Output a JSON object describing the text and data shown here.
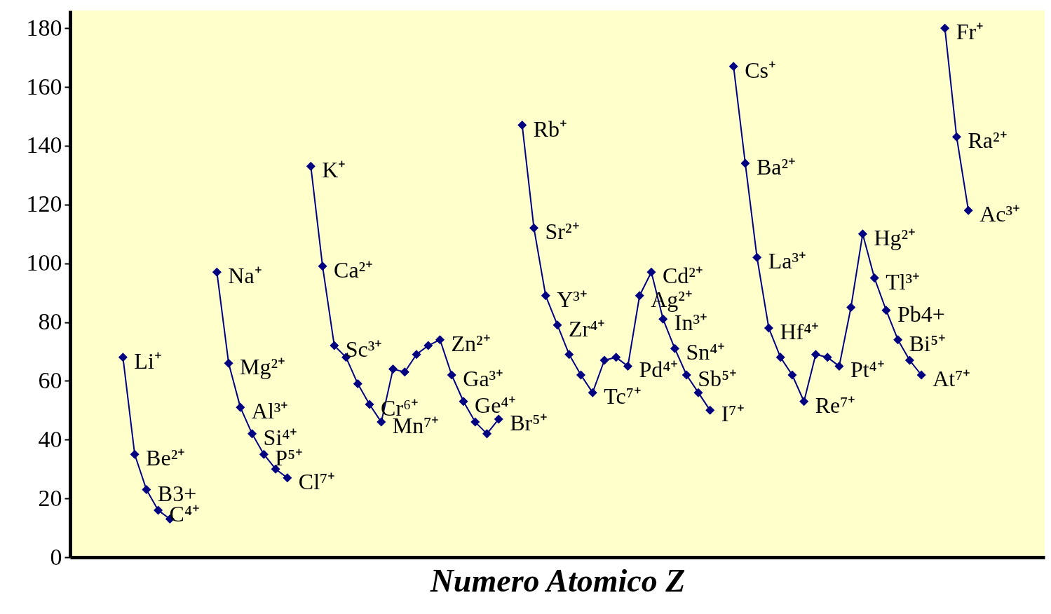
{
  "chart_data": {
    "type": "line",
    "xlabel": "Numero Atomico Z",
    "marker": "diamond",
    "ylim": [
      0,
      186
    ],
    "yticks": [
      0,
      20,
      40,
      60,
      80,
      100,
      120,
      140,
      160,
      180
    ],
    "categories": [
      null,
      null,
      null,
      null,
      null,
      null,
      null,
      null,
      null,
      null,
      null,
      null,
      null,
      null,
      null,
      null,
      null,
      null,
      null,
      null,
      null,
      null,
      null,
      null,
      null,
      null,
      null,
      null,
      null,
      null,
      null,
      null,
      null,
      null,
      null,
      null,
      null,
      null,
      null,
      null,
      null,
      null,
      null,
      null,
      null,
      null,
      null,
      null,
      null,
      null,
      null,
      null,
      null,
      null,
      null,
      null,
      null,
      null,
      null,
      null,
      null,
      null,
      null,
      null,
      null,
      null,
      null,
      null,
      null,
      null,
      null,
      null,
      null,
      null,
      null,
      null,
      null,
      null,
      null,
      null,
      null,
      null,
      null
    ],
    "series": [
      {
        "color": "#000080",
        "values": [
          null,
          null,
          null,
          null,
          68,
          35,
          23,
          16,
          13,
          null,
          null,
          null,
          97,
          66,
          51,
          42,
          35,
          30,
          27,
          null,
          133,
          99,
          72,
          68,
          59,
          52,
          46,
          64,
          63,
          69,
          72,
          74,
          62,
          53,
          46,
          42,
          47,
          null,
          147,
          112,
          89,
          79,
          69,
          62,
          56,
          67,
          68,
          65,
          89,
          97,
          81,
          71,
          62,
          56,
          50,
          null,
          167,
          134,
          102,
          78,
          68,
          62,
          53,
          69,
          68,
          65,
          85,
          110,
          95,
          84,
          74,
          67,
          62,
          null,
          180,
          143,
          118,
          null,
          null,
          null,
          null,
          null,
          null
        ],
        "value_labels": [
          null,
          null,
          null,
          null,
          "Li⁺",
          "Be²⁺",
          "B3+",
          "C⁴⁺",
          null,
          null,
          null,
          null,
          "Na⁺",
          "Mg²⁺",
          "Al³⁺",
          "Si⁴⁺",
          "P⁵⁺",
          null,
          "Cl⁷⁺",
          null,
          "K⁺",
          "Ca²⁺",
          "Sc³⁺",
          null,
          null,
          "Cr⁶⁺",
          "Mn⁷⁺",
          null,
          null,
          null,
          null,
          "Zn²⁺",
          "Ga³⁺",
          "Ge⁴⁺",
          null,
          null,
          "Br⁵⁺",
          null,
          "Rb⁺",
          "Sr²⁺",
          "Y³⁺",
          "Zr⁴⁺",
          null,
          null,
          "Tc⁷⁺",
          null,
          null,
          "Pd⁴⁺",
          "Ag²⁺",
          "Cd²⁺",
          "In³⁺",
          "Sn⁴⁺",
          "Sb⁵⁺",
          null,
          "I⁷⁺",
          null,
          "Cs⁺",
          "Ba²⁺",
          "La³⁺",
          "Hf⁴⁺",
          null,
          null,
          "Re⁷⁺",
          null,
          null,
          "Pt⁴⁺",
          null,
          "Hg²⁺",
          "Tl³⁺",
          "Pb4+",
          "Bi⁵⁺",
          null,
          "At⁷⁺",
          null,
          "Fr⁺",
          "Ra²⁺",
          "Ac³⁺",
          null,
          null,
          null,
          null,
          null,
          null
        ]
      }
    ]
  }
}
